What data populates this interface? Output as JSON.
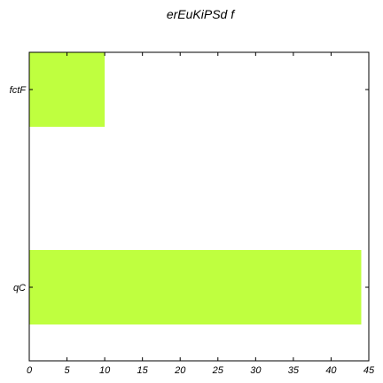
{
  "chart_data": {
    "type": "bar",
    "orientation": "horizontal",
    "title": "erEuKiPSd f",
    "xlabel": "",
    "ylabel": "",
    "categories": [
      "fctF",
      "qC"
    ],
    "values": [
      10,
      44
    ],
    "xlim": [
      0,
      45
    ],
    "xticks": [
      0,
      5,
      10,
      15,
      20,
      25,
      30,
      35,
      40,
      45
    ],
    "grid": false,
    "bar_color": "#bfff3f"
  }
}
